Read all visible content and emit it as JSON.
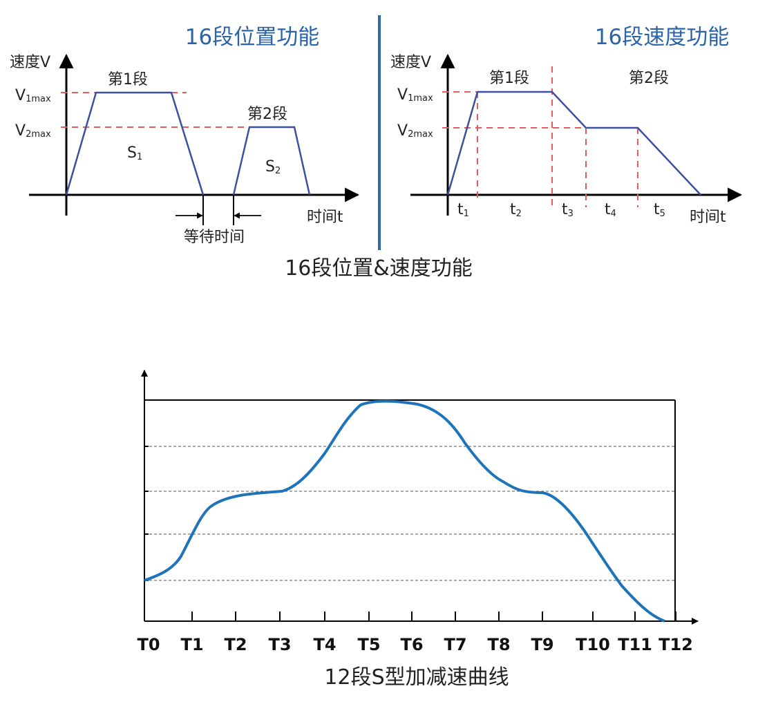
{
  "left_panel": {
    "title": "16段位置功能",
    "y_axis_label": "速度V",
    "x_axis_label": "时间t",
    "v1_label": "V",
    "v1_sub": "1max",
    "v2_label": "V",
    "v2_sub": "2max",
    "seg1_label": "第1段",
    "seg2_label": "第2段",
    "s1_label": "S",
    "s1_sub": "1",
    "s2_label": "S",
    "s2_sub": "2",
    "wait_label": "等待时间"
  },
  "right_panel": {
    "title": "16段速度功能",
    "y_axis_label": "速度V",
    "x_axis_label": "时间t",
    "v1_label": "V",
    "v1_sub": "1max",
    "v2_label": "V",
    "v2_sub": "2max",
    "seg1_label": "第1段",
    "seg2_label": "第2段",
    "t_labels": [
      {
        "main": "t",
        "sub": "1"
      },
      {
        "main": "t",
        "sub": "2"
      },
      {
        "main": "t",
        "sub": "3"
      },
      {
        "main": "t",
        "sub": "4"
      },
      {
        "main": "t",
        "sub": "5"
      }
    ]
  },
  "top_caption": "16段位置&速度功能",
  "bottom_chart": {
    "caption": "12段S型加减速曲线",
    "tick_labels": [
      "T0",
      "T1",
      "T2",
      "T3",
      "T4",
      "T5",
      "T6",
      "T7",
      "T8",
      "T9",
      "T10",
      "T11",
      "T12"
    ]
  },
  "colors": {
    "title_blue": "#2b63a9",
    "divider": "#2f6aa8",
    "profile_line": "#3c4fa0",
    "dashed_red": "#e8595c",
    "s_curve": "#1f74b9",
    "axis": "#000000"
  }
}
